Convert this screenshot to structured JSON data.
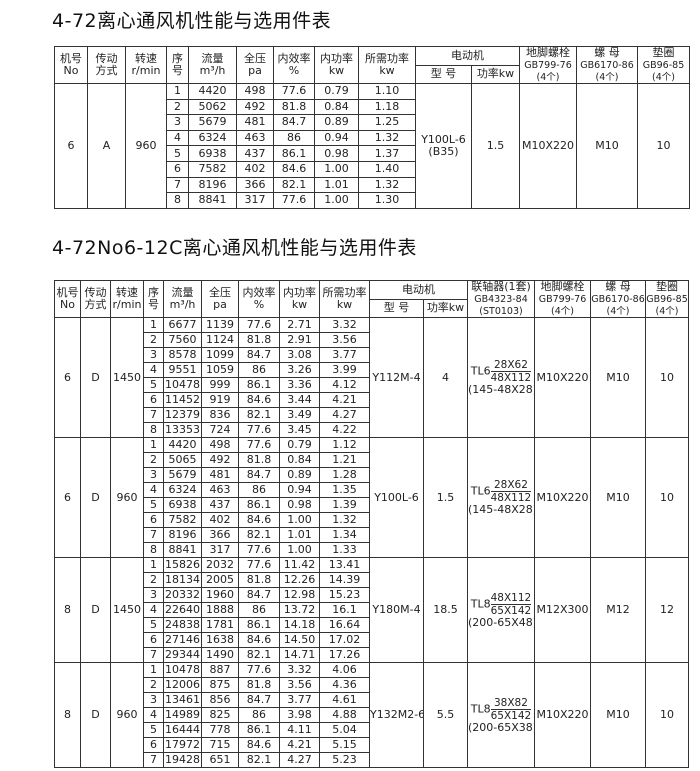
{
  "table1": {
    "title": "4-72离心通风机性能与选用件表",
    "headers": {
      "no": "机号",
      "no2": "No",
      "drive": "传动",
      "drive2": "方式",
      "speed": "转速",
      "speed2": "r/min",
      "seq": "序",
      "seq2": "号",
      "flow": "流量",
      "flow2": "m³/h",
      "pressure": "全压",
      "pressure2": "pa",
      "eff": "内效率",
      "eff2": "%",
      "inpower": "内功率",
      "inpower2": "kw",
      "reqpower": "所需功率",
      "reqpower2": "kw",
      "motor": "电动机",
      "model": "型 号",
      "power": "功率kw",
      "bolt": "地脚螺栓",
      "bolt2": "GB799-76",
      "bolt3": "(4个)",
      "nut": "螺 母",
      "nut2": "GB6170-86",
      "nut3": "(4个)",
      "washer": "垫圈",
      "washer2": "GB96-85",
      "washer3": "(4个)"
    },
    "groups": [
      {
        "no": "6",
        "drive": "A",
        "speed": "960",
        "motor_model": "Y100L-6",
        "motor_model2": "(B35)",
        "motor_power": "1.5",
        "bolt": "M10X220",
        "nut": "M10",
        "washer": "10",
        "rows": [
          [
            "1",
            "4420",
            "498",
            "77.6",
            "0.79",
            "1.10"
          ],
          [
            "2",
            "5062",
            "492",
            "81.8",
            "0.84",
            "1.18"
          ],
          [
            "3",
            "5679",
            "481",
            "84.7",
            "0.89",
            "1.25"
          ],
          [
            "4",
            "6324",
            "463",
            "86",
            "0.94",
            "1.32"
          ],
          [
            "5",
            "6938",
            "437",
            "86.1",
            "0.98",
            "1.37"
          ],
          [
            "6",
            "7582",
            "402",
            "84.6",
            "1.00",
            "1.40"
          ],
          [
            "7",
            "8196",
            "366",
            "82.1",
            "1.01",
            "1.32"
          ],
          [
            "8",
            "8841",
            "317",
            "77.6",
            "1.00",
            "1.30"
          ]
        ]
      }
    ]
  },
  "table2": {
    "title": "4-72No6-12C离心通风机性能与选用件表",
    "headers": {
      "no": "机号",
      "no2": "No",
      "drive": "传动",
      "drive2": "方式",
      "speed": "转速",
      "speed2": "r/min",
      "seq": "序",
      "seq2": "号",
      "flow": "流量",
      "flow2": "m³/h",
      "pressure": "全压",
      "pressure2": "pa",
      "eff": "内效率",
      "eff2": "%",
      "inpower": "内功率",
      "inpower2": "kw",
      "reqpower": "所需功率",
      "reqpower2": "kw",
      "motor": "电动机",
      "model": "型 号",
      "power": "功率kw",
      "coupling": "联轴器(1套)",
      "coupling2": "GB4323-84",
      "coupling3": "(ST0103)",
      "bolt": "地脚螺栓",
      "bolt2": "GB799-76",
      "bolt3": "(4个)",
      "nut": "螺 母",
      "nut2": "GB6170-86",
      "nut3": "(4个)",
      "washer": "垫圈",
      "washer2": "GB96-85",
      "washer3": "(4个)"
    },
    "groups": [
      {
        "no": "6",
        "drive": "D",
        "speed": "1450",
        "motor_model": "Y112M-4",
        "motor_power": "4",
        "coupling": {
          "type": "TL6",
          "num": "28X62",
          "den": "48X112",
          "note": "(145-48X28)"
        },
        "bolt": "M10X220",
        "nut": "M10",
        "washer": "10",
        "rows": [
          [
            "1",
            "6677",
            "1139",
            "77.6",
            "2.71",
            "3.32"
          ],
          [
            "2",
            "7560",
            "1124",
            "81.8",
            "2.91",
            "3.56"
          ],
          [
            "3",
            "8578",
            "1099",
            "84.7",
            "3.08",
            "3.77"
          ],
          [
            "4",
            "9551",
            "1059",
            "86",
            "3.26",
            "3.99"
          ],
          [
            "5",
            "10478",
            "999",
            "86.1",
            "3.36",
            "4.12"
          ],
          [
            "6",
            "11452",
            "919",
            "84.6",
            "3.44",
            "4.21"
          ],
          [
            "7",
            "12379",
            "836",
            "82.1",
            "3.49",
            "4.27"
          ],
          [
            "8",
            "13353",
            "724",
            "77.6",
            "3.45",
            "4.22"
          ]
        ]
      },
      {
        "no": "6",
        "drive": "D",
        "speed": "960",
        "motor_model": "Y100L-6",
        "motor_power": "1.5",
        "coupling": {
          "type": "TL6",
          "num": "28X62",
          "den": "48X112",
          "note": "(145-48X28)"
        },
        "bolt": "M10X220",
        "nut": "M10",
        "washer": "10",
        "rows": [
          [
            "1",
            "4420",
            "498",
            "77.6",
            "0.79",
            "1.12"
          ],
          [
            "2",
            "5065",
            "492",
            "81.8",
            "0.84",
            "1.21"
          ],
          [
            "3",
            "5679",
            "481",
            "84.7",
            "0.89",
            "1.28"
          ],
          [
            "4",
            "6324",
            "463",
            "86",
            "0.94",
            "1.35"
          ],
          [
            "5",
            "6938",
            "437",
            "86.1",
            "0.98",
            "1.39"
          ],
          [
            "6",
            "7582",
            "402",
            "84.6",
            "1.00",
            "1.32"
          ],
          [
            "7",
            "8196",
            "366",
            "82.1",
            "1.01",
            "1.34"
          ],
          [
            "8",
            "8841",
            "317",
            "77.6",
            "1.00",
            "1.33"
          ]
        ]
      },
      {
        "no": "8",
        "drive": "D",
        "speed": "1450",
        "motor_model": "Y180M-4",
        "motor_power": "18.5",
        "coupling": {
          "type": "TL8",
          "num": "48X112",
          "den": "65X142",
          "note": "(200-65X48)"
        },
        "bolt": "M12X300",
        "nut": "M12",
        "washer": "12",
        "rows": [
          [
            "1",
            "15826",
            "2032",
            "77.6",
            "11.42",
            "13.41"
          ],
          [
            "2",
            "18134",
            "2005",
            "81.8",
            "12.26",
            "14.39"
          ],
          [
            "3",
            "20332",
            "1960",
            "84.7",
            "12.98",
            "15.23"
          ],
          [
            "4",
            "22640",
            "1888",
            "86",
            "13.72",
            "16.1"
          ],
          [
            "5",
            "24838",
            "1781",
            "86.1",
            "14.18",
            "16.64"
          ],
          [
            "6",
            "27146",
            "1638",
            "84.6",
            "14.50",
            "17.02"
          ],
          [
            "7",
            "29344",
            "1490",
            "82.1",
            "14.71",
            "17.26"
          ]
        ]
      },
      {
        "no": "8",
        "drive": "D",
        "speed": "960",
        "motor_model": "Y132M2-6",
        "motor_power": "5.5",
        "coupling": {
          "type": "TL8",
          "num": "38X82",
          "den": "65X142",
          "note": "(200-65X38)"
        },
        "bolt": "M10X220",
        "nut": "M10",
        "washer": "10",
        "rows": [
          [
            "1",
            "10478",
            "887",
            "77.6",
            "3.32",
            "4.06"
          ],
          [
            "2",
            "12006",
            "875",
            "81.8",
            "3.56",
            "4.36"
          ],
          [
            "3",
            "13461",
            "856",
            "84.7",
            "3.77",
            "4.61"
          ],
          [
            "4",
            "14989",
            "825",
            "86",
            "3.98",
            "4.88"
          ],
          [
            "5",
            "16444",
            "778",
            "86.1",
            "4.11",
            "5.04"
          ],
          [
            "6",
            "17972",
            "715",
            "84.6",
            "4.21",
            "5.15"
          ],
          [
            "7",
            "19428",
            "651",
            "82.1",
            "4.27",
            "5.23"
          ]
        ]
      }
    ]
  }
}
